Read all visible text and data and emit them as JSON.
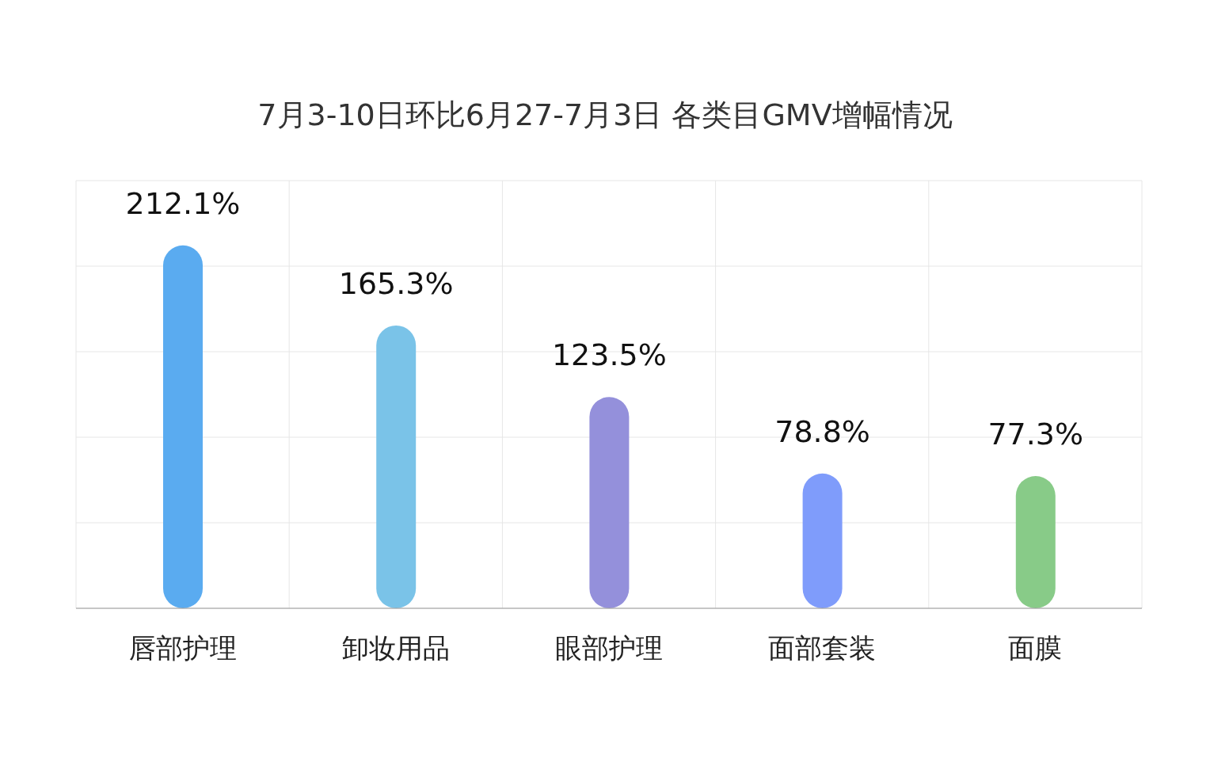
{
  "chart_data": {
    "type": "bar",
    "title": "7月3-10日环比6月27-7月3日 各类目GMV增幅情况",
    "categories": [
      "唇部护理",
      "卸妆用品",
      "眼部护理",
      "面部套装",
      "面膜"
    ],
    "values": [
      212.1,
      165.3,
      123.5,
      78.8,
      77.3
    ],
    "value_labels": [
      "212.1%",
      "165.3%",
      "123.5%",
      "78.8%",
      "77.3%"
    ],
    "colors": [
      "#5aabf0",
      "#7ac3e8",
      "#9490db",
      "#7f9cfb",
      "#88cb88"
    ],
    "ylim": [
      0,
      250
    ],
    "yticks": [
      {
        "value": 0,
        "label": null
      },
      {
        "value": 50,
        "label": null
      },
      {
        "value": 100,
        "label": null
      },
      {
        "value": 150,
        "label": null
      },
      {
        "value": 200,
        "label": null
      },
      {
        "value": 250,
        "label": null
      }
    ],
    "grid": true,
    "tick_labels": "x"
  }
}
